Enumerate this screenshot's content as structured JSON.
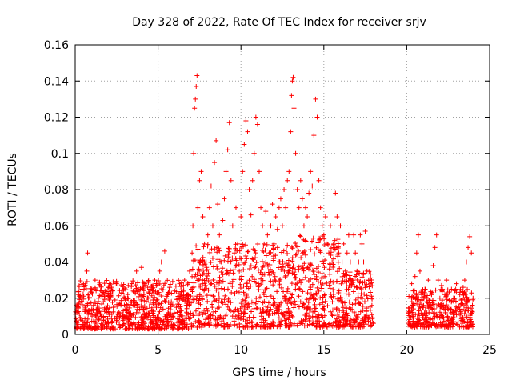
{
  "chart_data": {
    "type": "scatter",
    "title": "Day 328 of 2022, Rate Of TEC Index for receiver srjv",
    "xlabel": "GPS time / hours",
    "ylabel": "ROTI / TECUs",
    "xlim": [
      0,
      25
    ],
    "ylim": [
      0,
      0.16
    ],
    "x_ticks": [
      0,
      5,
      10,
      15,
      20,
      25
    ],
    "x_tick_labels": [
      "0",
      "5",
      "10",
      "15",
      "20",
      "25"
    ],
    "y_ticks": [
      0,
      0.02,
      0.04,
      0.06,
      0.08,
      0.1,
      0.12,
      0.14,
      0.16
    ],
    "y_tick_labels": [
      "0",
      "0.02",
      "0.04",
      "0.06",
      "0.08",
      "0.1",
      "0.12",
      "0.14",
      "0.16"
    ],
    "grid": true,
    "marker": "+",
    "marker_color": "#ff0000",
    "series": [
      {
        "points": [
          [
            0.1,
            0.012
          ],
          [
            0.2,
            0.022
          ],
          [
            0.3,
            0.009
          ],
          [
            0.4,
            0.018
          ],
          [
            0.5,
            0.028
          ],
          [
            0.6,
            0.015
          ],
          [
            0.7,
            0.035
          ],
          [
            0.75,
            0.045
          ],
          [
            0.8,
            0.02
          ],
          [
            0.9,
            0.011
          ],
          [
            1.0,
            0.025
          ],
          [
            1.1,
            0.016
          ],
          [
            1.2,
            0.03
          ],
          [
            1.3,
            0.012
          ],
          [
            1.4,
            0.02
          ],
          [
            1.5,
            0.027
          ],
          [
            1.6,
            0.01
          ],
          [
            1.7,
            0.018
          ],
          [
            1.8,
            0.024
          ],
          [
            1.9,
            0.014
          ],
          [
            2.0,
            0.021
          ],
          [
            2.1,
            0.012
          ],
          [
            2.2,
            0.026
          ],
          [
            2.3,
            0.015
          ],
          [
            2.4,
            0.019
          ],
          [
            2.5,
            0.028
          ],
          [
            2.6,
            0.011
          ],
          [
            2.7,
            0.017
          ],
          [
            2.8,
            0.023
          ],
          [
            2.9,
            0.013
          ],
          [
            3.0,
            0.02
          ],
          [
            3.1,
            0.014
          ],
          [
            3.2,
            0.027
          ],
          [
            3.3,
            0.01
          ],
          [
            3.4,
            0.018
          ],
          [
            3.5,
            0.024
          ],
          [
            3.6,
            0.016
          ],
          [
            3.7,
            0.035
          ],
          [
            3.8,
            0.012
          ],
          [
            3.9,
            0.022
          ],
          [
            4.0,
            0.037
          ],
          [
            4.1,
            0.015
          ],
          [
            4.2,
            0.028
          ],
          [
            4.3,
            0.011
          ],
          [
            4.4,
            0.02
          ],
          [
            4.5,
            0.025
          ],
          [
            4.6,
            0.013
          ],
          [
            4.7,
            0.019
          ],
          [
            4.8,
            0.03
          ],
          [
            4.9,
            0.015
          ],
          [
            5.0,
            0.022
          ],
          [
            5.1,
            0.035
          ],
          [
            5.2,
            0.04
          ],
          [
            5.3,
            0.014
          ],
          [
            5.4,
            0.046
          ],
          [
            5.5,
            0.02
          ],
          [
            5.6,
            0.012
          ],
          [
            5.7,
            0.026
          ],
          [
            5.8,
            0.018
          ],
          [
            5.9,
            0.01
          ],
          [
            6.0,
            0.024
          ],
          [
            6.1,
            0.015
          ],
          [
            6.2,
            0.021
          ],
          [
            6.3,
            0.028
          ],
          [
            6.4,
            0.013
          ],
          [
            6.5,
            0.019
          ],
          [
            6.6,
            0.03
          ],
          [
            6.7,
            0.016
          ],
          [
            6.8,
            0.022
          ],
          [
            6.9,
            0.035
          ],
          [
            7.0,
            0.025
          ],
          [
            7.05,
            0.045
          ],
          [
            7.1,
            0.06
          ],
          [
            7.15,
            0.1
          ],
          [
            7.2,
            0.125
          ],
          [
            7.25,
            0.13
          ],
          [
            7.3,
            0.137
          ],
          [
            7.35,
            0.143
          ],
          [
            7.4,
            0.07
          ],
          [
            7.5,
            0.085
          ],
          [
            7.6,
            0.09
          ],
          [
            7.7,
            0.065
          ],
          [
            7.8,
            0.05
          ],
          [
            7.9,
            0.04
          ],
          [
            8.0,
            0.055
          ],
          [
            8.1,
            0.07
          ],
          [
            8.2,
            0.082
          ],
          [
            8.3,
            0.06
          ],
          [
            8.4,
            0.095
          ],
          [
            8.5,
            0.107
          ],
          [
            8.6,
            0.072
          ],
          [
            8.7,
            0.055
          ],
          [
            8.8,
            0.04
          ],
          [
            8.9,
            0.063
          ],
          [
            9.0,
            0.075
          ],
          [
            9.1,
            0.09
          ],
          [
            9.2,
            0.102
          ],
          [
            9.3,
            0.117
          ],
          [
            9.4,
            0.085
          ],
          [
            9.5,
            0.06
          ],
          [
            9.6,
            0.045
          ],
          [
            9.7,
            0.07
          ],
          [
            9.8,
            0.05
          ],
          [
            9.9,
            0.035
          ],
          [
            10.0,
            0.065
          ],
          [
            10.1,
            0.09
          ],
          [
            10.2,
            0.105
          ],
          [
            10.3,
            0.118
          ],
          [
            10.4,
            0.112
          ],
          [
            10.5,
            0.08
          ],
          [
            10.6,
            0.066
          ],
          [
            10.7,
            0.085
          ],
          [
            10.8,
            0.1
          ],
          [
            10.9,
            0.12
          ],
          [
            11.0,
            0.116
          ],
          [
            11.1,
            0.09
          ],
          [
            11.2,
            0.07
          ],
          [
            11.3,
            0.06
          ],
          [
            11.4,
            0.05
          ],
          [
            11.5,
            0.068
          ],
          [
            11.6,
            0.055
          ],
          [
            11.7,
            0.045
          ],
          [
            11.8,
            0.06
          ],
          [
            11.9,
            0.072
          ],
          [
            12.0,
            0.05
          ],
          [
            12.1,
            0.065
          ],
          [
            12.2,
            0.058
          ],
          [
            12.3,
            0.07
          ],
          [
            12.4,
            0.075
          ],
          [
            12.5,
            0.06
          ],
          [
            12.6,
            0.08
          ],
          [
            12.7,
            0.07
          ],
          [
            12.8,
            0.085
          ],
          [
            12.9,
            0.09
          ],
          [
            13.0,
            0.112
          ],
          [
            13.05,
            0.132
          ],
          [
            13.1,
            0.14
          ],
          [
            13.15,
            0.142
          ],
          [
            13.2,
            0.125
          ],
          [
            13.3,
            0.1
          ],
          [
            13.4,
            0.08
          ],
          [
            13.5,
            0.07
          ],
          [
            13.6,
            0.085
          ],
          [
            13.7,
            0.075
          ],
          [
            13.8,
            0.06
          ],
          [
            13.9,
            0.07
          ],
          [
            14.0,
            0.065
          ],
          [
            14.1,
            0.078
          ],
          [
            14.2,
            0.09
          ],
          [
            14.3,
            0.082
          ],
          [
            14.4,
            0.11
          ],
          [
            14.5,
            0.13
          ],
          [
            14.6,
            0.12
          ],
          [
            14.7,
            0.085
          ],
          [
            14.8,
            0.07
          ],
          [
            14.9,
            0.06
          ],
          [
            15.0,
            0.055
          ],
          [
            15.1,
            0.065
          ],
          [
            15.2,
            0.05
          ],
          [
            15.3,
            0.045
          ],
          [
            15.4,
            0.06
          ],
          [
            15.5,
            0.04
          ],
          [
            15.6,
            0.05
          ],
          [
            15.7,
            0.078
          ],
          [
            15.8,
            0.065
          ],
          [
            15.9,
            0.045
          ],
          [
            16.0,
            0.06
          ],
          [
            16.1,
            0.04
          ],
          [
            16.2,
            0.05
          ],
          [
            16.3,
            0.035
          ],
          [
            16.4,
            0.045
          ],
          [
            16.5,
            0.055
          ],
          [
            16.6,
            0.04
          ],
          [
            16.7,
            0.03
          ],
          [
            16.8,
            0.055
          ],
          [
            16.9,
            0.045
          ],
          [
            17.0,
            0.035
          ],
          [
            17.1,
            0.04
          ],
          [
            17.2,
            0.055
          ],
          [
            17.3,
            0.05
          ],
          [
            17.4,
            0.04
          ],
          [
            17.5,
            0.057
          ],
          [
            17.6,
            0.035
          ],
          [
            17.7,
            0.03
          ],
          [
            17.8,
            0.028
          ],
          [
            17.9,
            0.02
          ],
          [
            20.1,
            0.012
          ],
          [
            20.2,
            0.02
          ],
          [
            20.3,
            0.028
          ],
          [
            20.4,
            0.016
          ],
          [
            20.5,
            0.032
          ],
          [
            20.6,
            0.045
          ],
          [
            20.7,
            0.055
          ],
          [
            20.8,
            0.035
          ],
          [
            20.9,
            0.022
          ],
          [
            21.0,
            0.015
          ],
          [
            21.1,
            0.025
          ],
          [
            21.2,
            0.018
          ],
          [
            21.3,
            0.03
          ],
          [
            21.4,
            0.012
          ],
          [
            21.5,
            0.022
          ],
          [
            21.6,
            0.038
          ],
          [
            21.7,
            0.048
          ],
          [
            21.8,
            0.055
          ],
          [
            21.9,
            0.03
          ],
          [
            22.0,
            0.02
          ],
          [
            22.1,
            0.027
          ],
          [
            22.2,
            0.015
          ],
          [
            22.3,
            0.022
          ],
          [
            22.4,
            0.03
          ],
          [
            22.5,
            0.014
          ],
          [
            22.6,
            0.019
          ],
          [
            22.7,
            0.025
          ],
          [
            22.8,
            0.012
          ],
          [
            22.9,
            0.02
          ],
          [
            23.0,
            0.028
          ],
          [
            23.1,
            0.015
          ],
          [
            23.2,
            0.022
          ],
          [
            23.3,
            0.017
          ],
          [
            23.4,
            0.026
          ],
          [
            23.5,
            0.03
          ],
          [
            23.6,
            0.04
          ],
          [
            23.7,
            0.048
          ],
          [
            23.8,
            0.054
          ],
          [
            23.9,
            0.045
          ],
          [
            24.0,
            0.02
          ]
        ]
      }
    ],
    "bands": [
      {
        "x_start": 0.0,
        "x_end": 7.0,
        "y_min": 0.003,
        "y_max": 0.03
      },
      {
        "x_start": 7.0,
        "x_end": 13.0,
        "y_min": 0.004,
        "y_max": 0.05
      },
      {
        "x_start": 13.0,
        "x_end": 16.0,
        "y_min": 0.004,
        "y_max": 0.055
      },
      {
        "x_start": 16.0,
        "x_end": 18.0,
        "y_min": 0.004,
        "y_max": 0.035
      },
      {
        "x_start": 20.1,
        "x_end": 24.0,
        "y_min": 0.004,
        "y_max": 0.025
      }
    ]
  }
}
